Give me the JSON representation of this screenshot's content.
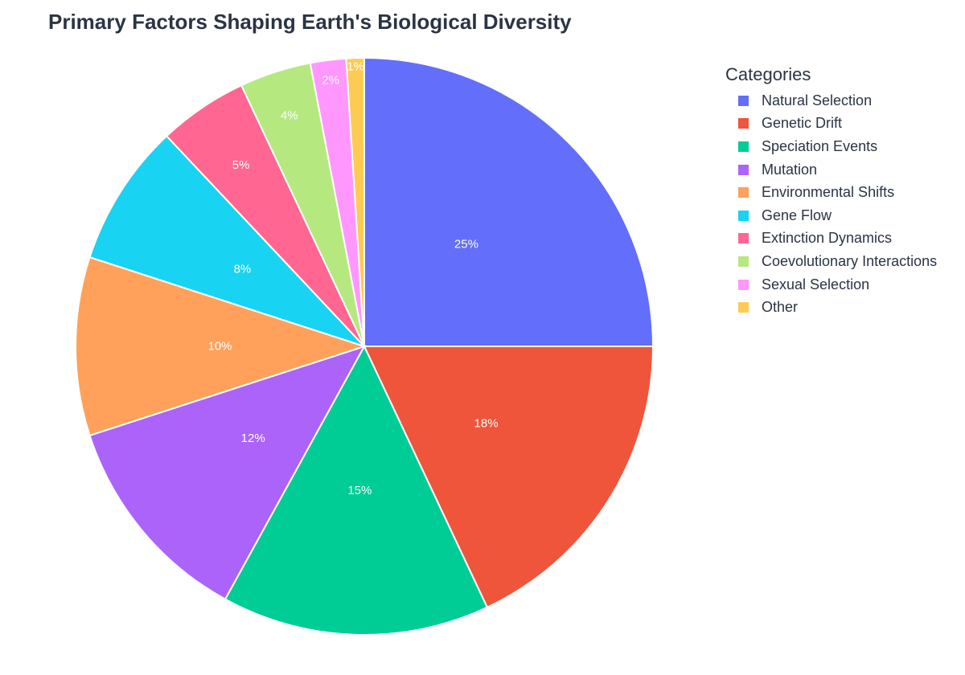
{
  "title": "Primary Factors Shaping Earth's Biological Diversity",
  "legend_title": "Categories",
  "chart_data": {
    "type": "pie",
    "title": "Primary Factors Shaping Earth's Biological Diversity",
    "legend_title": "Categories",
    "legend_position": "right",
    "start": "12 o'clock",
    "direction": "clockwise",
    "slices": [
      {
        "label": "Natural Selection",
        "value": 25,
        "text": "25%",
        "color": "#636efa"
      },
      {
        "label": "Genetic Drift",
        "value": 18,
        "text": "18%",
        "color": "#ef553b"
      },
      {
        "label": "Speciation Events",
        "value": 15,
        "text": "15%",
        "color": "#00cc96"
      },
      {
        "label": "Mutation",
        "value": 12,
        "text": "12%",
        "color": "#ab63fa"
      },
      {
        "label": "Environmental Shifts",
        "value": 10,
        "text": "10%",
        "color": "#ffa15a"
      },
      {
        "label": "Gene Flow",
        "value": 8,
        "text": "8%",
        "color": "#19d3f3"
      },
      {
        "label": "Extinction Dynamics",
        "value": 5,
        "text": "5%",
        "color": "#ff6692"
      },
      {
        "label": "Coevolutionary Interactions",
        "value": 4,
        "text": "4%",
        "color": "#b6e880"
      },
      {
        "label": "Sexual Selection",
        "value": 2,
        "text": "2%",
        "color": "#ff97ff"
      },
      {
        "label": "Other",
        "value": 1,
        "text": "1%",
        "color": "#fecb52"
      }
    ]
  }
}
